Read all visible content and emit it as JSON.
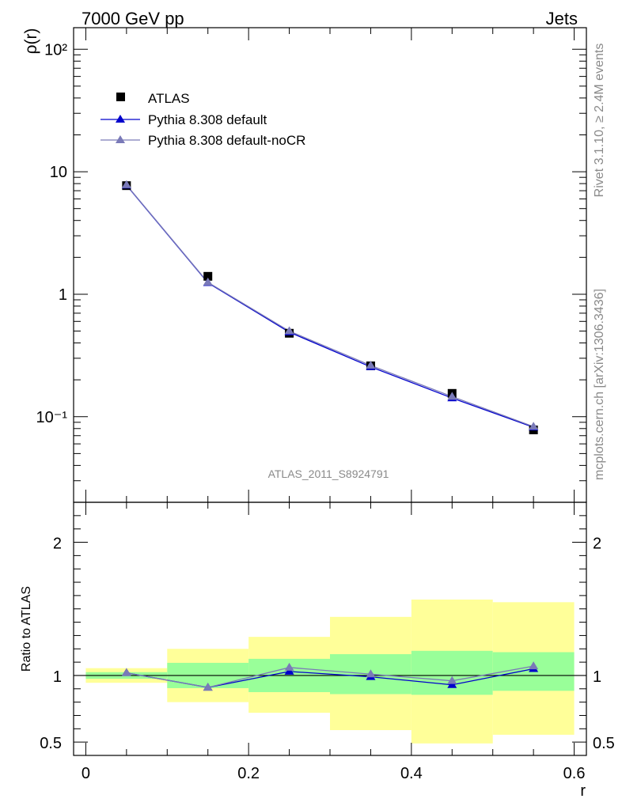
{
  "header": {
    "left": "7000 GeV pp",
    "right": "Jets"
  },
  "side_text": {
    "rivet": "Rivet 3.1.10, ≥ 2.4M events",
    "mcplots": "mcplots.cern.ch [arXiv:1306.3436]"
  },
  "watermark": "ATLAS_2011_S8924791",
  "legend": {
    "data": "ATLAS",
    "mc1": "Pythia 8.308 default",
    "mc2": "Pythia 8.308 default-noCR"
  },
  "colors": {
    "data": "#000000",
    "mc1": "#0000cc",
    "mc2": "#7a7ab8",
    "band_inner": "#99ff99",
    "band_outer": "#ffff99"
  },
  "chart_data": {
    "type": "line",
    "xlabel": "r",
    "main": {
      "ylabel": "ρ(r)",
      "yscale": "log",
      "ylim": [
        0.02,
        150
      ],
      "ytick_labels": [
        "10⁻¹",
        "1",
        "10",
        "10²"
      ]
    },
    "ratio": {
      "ylabel": "Ratio to ATLAS",
      "ylim": [
        0.4,
        2.3
      ],
      "ytick_labels": [
        "0.5",
        "1",
        "2"
      ]
    },
    "xlim": [
      -0.015,
      0.615
    ],
    "xtick_labels": [
      "0",
      "0.2",
      "0.4",
      "0.6"
    ],
    "bins": [
      [
        0.0,
        0.1
      ],
      [
        0.1,
        0.2
      ],
      [
        0.2,
        0.3
      ],
      [
        0.3,
        0.4
      ],
      [
        0.4,
        0.5
      ],
      [
        0.5,
        0.6
      ]
    ],
    "x": [
      0.05,
      0.15,
      0.25,
      0.35,
      0.45,
      0.55
    ],
    "series": [
      {
        "name": "ATLAS",
        "values": [
          7.7,
          1.4,
          0.48,
          0.26,
          0.155,
          0.078
        ]
      },
      {
        "name": "Pythia 8.308 default",
        "values": [
          7.75,
          1.24,
          0.49,
          0.255,
          0.142,
          0.082
        ]
      },
      {
        "name": "Pythia 8.308 default-noCR",
        "values": [
          7.8,
          1.25,
          0.5,
          0.262,
          0.146,
          0.083
        ]
      }
    ],
    "ratio_series": [
      {
        "name": "Pythia 8.308 default",
        "values": [
          1.02,
          0.91,
          1.03,
          0.99,
          0.93,
          1.05
        ]
      },
      {
        "name": "Pythia 8.308 default-noCR",
        "values": [
          1.02,
          0.91,
          1.06,
          1.01,
          0.96,
          1.07
        ]
      }
    ],
    "band_inner": {
      "low": [
        0.975,
        0.905,
        0.875,
        0.86,
        0.855,
        0.885
      ],
      "high": [
        1.025,
        1.095,
        1.125,
        1.16,
        1.185,
        1.175
      ]
    },
    "band_outer": {
      "low": [
        0.945,
        0.8,
        0.72,
        0.59,
        0.49,
        0.555
      ],
      "high": [
        1.055,
        1.2,
        1.29,
        1.44,
        1.57,
        1.55
      ]
    }
  }
}
